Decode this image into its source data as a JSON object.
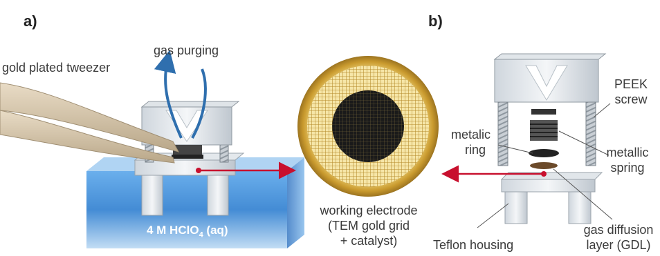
{
  "panels": {
    "a": "a)",
    "b": "b)"
  },
  "left": {
    "tweezer": "gold plated tweezer",
    "gas": "gas purging",
    "electrolyte_main": "4 M HClO",
    "electrolyte_sub": "4",
    "electrolyte_tail": " (aq)"
  },
  "center": {
    "line1": "working electrode",
    "line2": "(TEM gold grid",
    "line3": "+ catalyst)"
  },
  "right": {
    "peek_1": "PEEK",
    "peek_2": "screw",
    "ring_1": "metalic",
    "ring_2": "ring",
    "spring_1": "metallic",
    "spring_2": "spring",
    "teflon": "Teflon housing",
    "gdl_1": "gas diffusion",
    "gdl_2": "layer (GDL)"
  },
  "colors": {
    "arrow_red": "#c8102e",
    "gas_blue": "#2f6fae",
    "gold": "#d9b24a",
    "electrolyte": "#3d8fd8"
  }
}
